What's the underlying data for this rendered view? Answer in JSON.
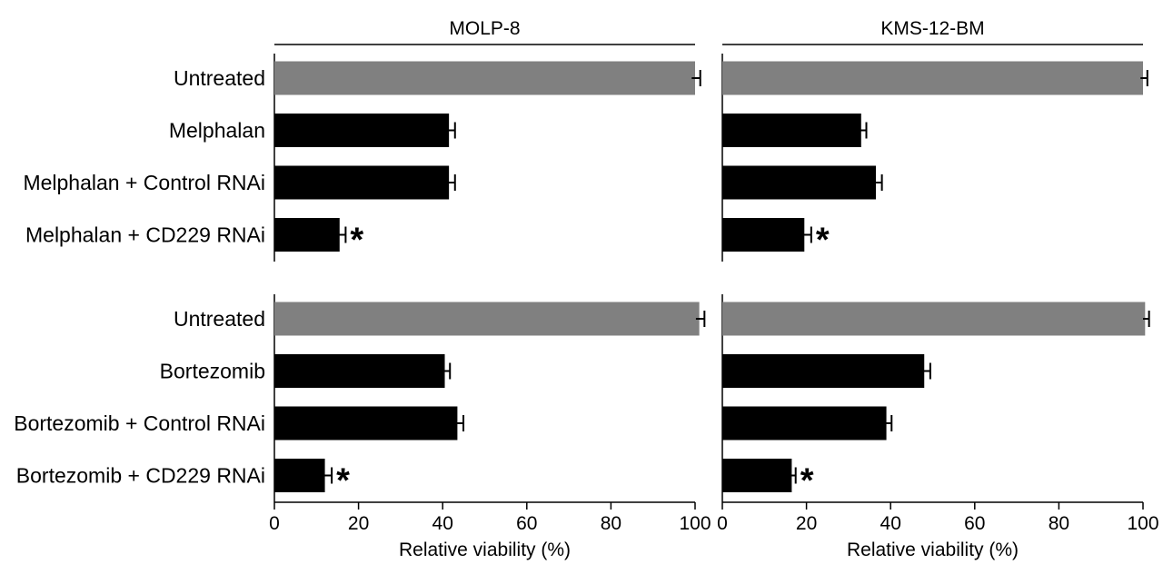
{
  "chart_data": {
    "type": "bar",
    "orientation": "horizontal",
    "columns": [
      "MOLP-8",
      "KMS-12-BM"
    ],
    "x_label": "Relative viability (%)",
    "x_range": [
      0,
      100
    ],
    "x_ticks": [
      "0",
      "20",
      "40",
      "60",
      "80",
      "100"
    ],
    "panels": [
      {
        "cell_line": "MOLP-8",
        "group": "Melphalan",
        "categories": [
          "Untreated",
          "Melphalan",
          "Melphalan + Control RNAi",
          "Melphalan + CD229 RNAi"
        ],
        "values": [
          100,
          41.5,
          41.5,
          15.5
        ],
        "errors": [
          0.8,
          1.0,
          1.0,
          1.0
        ],
        "significant": [
          false,
          false,
          false,
          true
        ],
        "colors": [
          "#808080",
          "#000000",
          "#000000",
          "#000000"
        ]
      },
      {
        "cell_line": "KMS-12-BM",
        "group": "Melphalan",
        "categories": [
          "Untreated",
          "Melphalan",
          "Melphalan + Control RNAi",
          "Melphalan + CD229 RNAi"
        ],
        "values": [
          100,
          33,
          36.5,
          19.5
        ],
        "errors": [
          0.6,
          0.8,
          1.0,
          1.2
        ],
        "significant": [
          false,
          false,
          false,
          true
        ],
        "colors": [
          "#808080",
          "#000000",
          "#000000",
          "#000000"
        ]
      },
      {
        "cell_line": "MOLP-8",
        "group": "Bortezomib",
        "categories": [
          "Untreated",
          "Bortezomib",
          "Bortezomib + Control RNAi",
          "Bortezomib + CD229 RNAi"
        ],
        "values": [
          101,
          40.5,
          43.5,
          12
        ],
        "errors": [
          0.8,
          0.8,
          1.0,
          1.2
        ],
        "significant": [
          false,
          false,
          false,
          true
        ],
        "colors": [
          "#808080",
          "#000000",
          "#000000",
          "#000000"
        ]
      },
      {
        "cell_line": "KMS-12-BM",
        "group": "Bortezomib",
        "categories": [
          "Untreated",
          "Bortezomib",
          "Bortezomib + Control RNAi",
          "Bortezomib + CD229 RNAi"
        ],
        "values": [
          100.5,
          48,
          39,
          16.5
        ],
        "errors": [
          0.5,
          1.0,
          0.8,
          0.5
        ],
        "significant": [
          false,
          false,
          false,
          true
        ],
        "colors": [
          "#808080",
          "#000000",
          "#000000",
          "#000000"
        ]
      }
    ],
    "significance_marker": "*",
    "grid": false,
    "legend": "none"
  }
}
